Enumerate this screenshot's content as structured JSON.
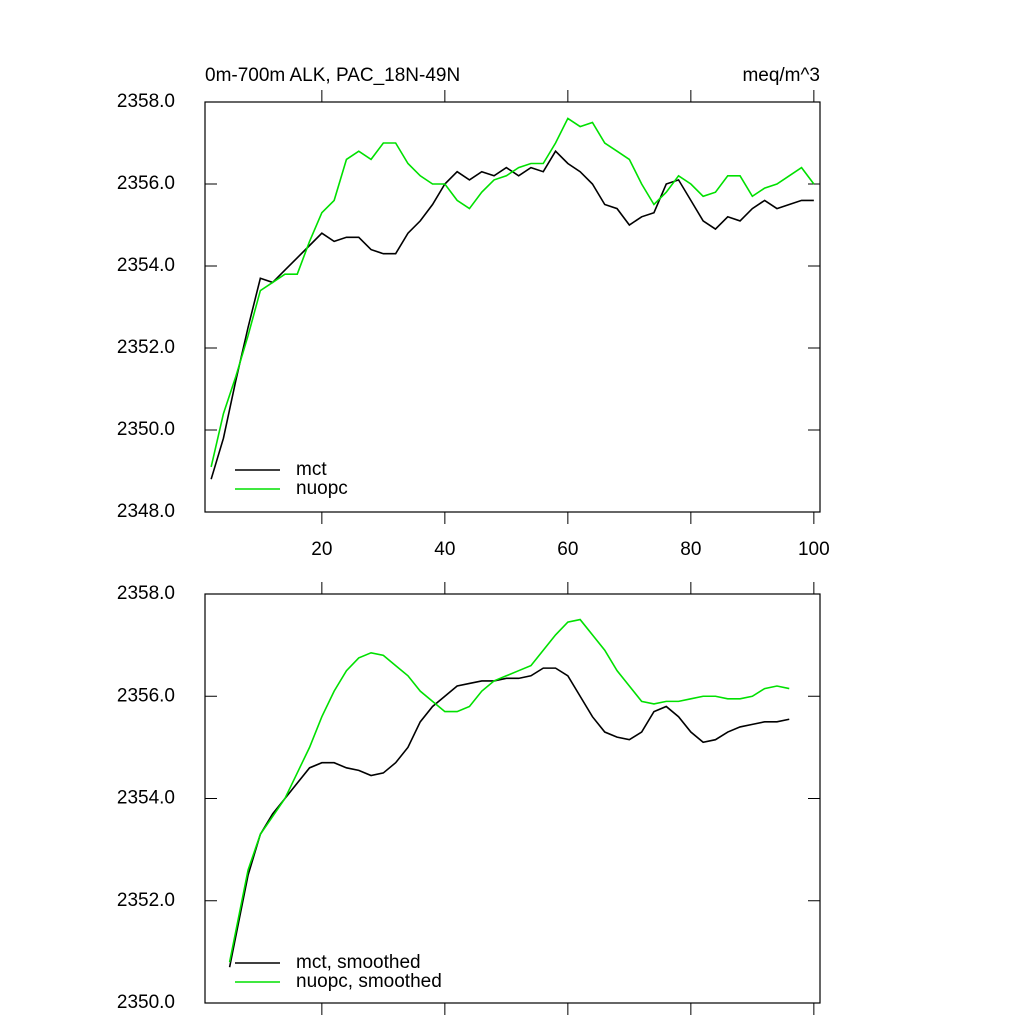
{
  "chart_data": [
    {
      "type": "line",
      "title": "0m-700m ALK, PAC_18N-49N",
      "units": "meq/m^3",
      "x": [
        2,
        4,
        6,
        8,
        10,
        12,
        14,
        16,
        18,
        20,
        22,
        24,
        26,
        28,
        30,
        32,
        34,
        36,
        38,
        40,
        42,
        44,
        46,
        48,
        50,
        52,
        54,
        56,
        58,
        60,
        62,
        64,
        66,
        68,
        70,
        72,
        74,
        76,
        78,
        80,
        82,
        84,
        86,
        88,
        90,
        92,
        94,
        96,
        98,
        100
      ],
      "series": [
        {
          "name": "mct",
          "color": "#000000",
          "values": [
            2348.8,
            2349.8,
            2351.2,
            2352.5,
            2353.7,
            2353.6,
            2353.9,
            2354.2,
            2354.5,
            2354.8,
            2354.6,
            2354.7,
            2354.7,
            2354.4,
            2354.3,
            2354.3,
            2354.8,
            2355.1,
            2355.5,
            2356.0,
            2356.3,
            2356.1,
            2356.3,
            2356.2,
            2356.4,
            2356.2,
            2356.4,
            2356.3,
            2356.8,
            2356.5,
            2356.3,
            2356.0,
            2355.5,
            2355.4,
            2355.0,
            2355.2,
            2355.3,
            2356.0,
            2356.1,
            2355.6,
            2355.1,
            2354.9,
            2355.2,
            2355.1,
            2355.4,
            2355.6,
            2355.4,
            2355.5,
            2355.6,
            2355.6
          ]
        },
        {
          "name": "nuopc",
          "color": "#00e000",
          "values": [
            2349.1,
            2350.4,
            2351.3,
            2352.3,
            2353.4,
            2353.6,
            2353.8,
            2353.8,
            2354.6,
            2355.3,
            2355.6,
            2356.6,
            2356.8,
            2356.6,
            2357.0,
            2357.0,
            2356.5,
            2356.2,
            2356.0,
            2356.0,
            2355.6,
            2355.4,
            2355.8,
            2356.1,
            2356.2,
            2356.4,
            2356.5,
            2356.5,
            2357.0,
            2357.6,
            2357.4,
            2357.5,
            2357.0,
            2356.8,
            2356.6,
            2356.0,
            2355.5,
            2355.8,
            2356.2,
            2356.0,
            2355.7,
            2355.8,
            2356.2,
            2356.2,
            2355.7,
            2355.9,
            2356.0,
            2356.2,
            2356.4,
            2356.0
          ]
        }
      ],
      "xlim": [
        1,
        101
      ],
      "xticks": [
        20,
        40,
        60,
        80,
        100
      ],
      "show_xtick_labels": true,
      "ylim": [
        2348,
        2358
      ],
      "yticks": [
        {
          "value": 2348,
          "label": "2348.0"
        },
        {
          "value": 2350,
          "label": "2350.0"
        },
        {
          "value": 2352,
          "label": "2352.0"
        },
        {
          "value": 2354,
          "label": "2354.0"
        },
        {
          "value": 2356,
          "label": "2356.0"
        },
        {
          "value": 2358,
          "label": "2358.0"
        }
      ]
    },
    {
      "type": "line",
      "x": [
        5,
        8,
        10,
        12,
        14,
        16,
        18,
        20,
        22,
        24,
        26,
        28,
        30,
        32,
        34,
        36,
        38,
        40,
        42,
        44,
        46,
        48,
        50,
        52,
        54,
        56,
        58,
        60,
        62,
        64,
        66,
        68,
        70,
        72,
        74,
        76,
        78,
        80,
        82,
        84,
        86,
        88,
        90,
        92,
        94,
        96
      ],
      "series": [
        {
          "name": "mct, smoothed",
          "color": "#000000",
          "values": [
            2350.7,
            2352.5,
            2353.3,
            2353.7,
            2354.0,
            2354.3,
            2354.6,
            2354.7,
            2354.7,
            2354.6,
            2354.55,
            2354.45,
            2354.5,
            2354.7,
            2355.0,
            2355.5,
            2355.8,
            2356.0,
            2356.2,
            2356.25,
            2356.3,
            2356.3,
            2356.35,
            2356.35,
            2356.4,
            2356.55,
            2356.55,
            2356.4,
            2356.0,
            2355.6,
            2355.3,
            2355.2,
            2355.15,
            2355.3,
            2355.7,
            2355.8,
            2355.6,
            2355.3,
            2355.1,
            2355.15,
            2355.3,
            2355.4,
            2355.45,
            2355.5,
            2355.5,
            2355.55
          ]
        },
        {
          "name": "nuopc, smoothed",
          "color": "#00e000",
          "values": [
            2350.8,
            2352.6,
            2353.3,
            2353.65,
            2354.0,
            2354.5,
            2355.0,
            2355.6,
            2356.1,
            2356.5,
            2356.75,
            2356.85,
            2356.8,
            2356.6,
            2356.4,
            2356.1,
            2355.9,
            2355.7,
            2355.7,
            2355.8,
            2356.1,
            2356.3,
            2356.4,
            2356.5,
            2356.6,
            2356.9,
            2357.2,
            2357.45,
            2357.5,
            2357.2,
            2356.9,
            2356.5,
            2356.2,
            2355.9,
            2355.85,
            2355.9,
            2355.9,
            2355.95,
            2356.0,
            2356.0,
            2355.95,
            2355.95,
            2356.0,
            2356.15,
            2356.2,
            2356.15
          ]
        }
      ],
      "xlim": [
        1,
        101
      ],
      "xticks": [
        20,
        40,
        60,
        80,
        100
      ],
      "show_xtick_labels": false,
      "ylim": [
        2350,
        2358
      ],
      "yticks": [
        {
          "value": 2350,
          "label": "2350.0"
        },
        {
          "value": 2352,
          "label": "2352.0"
        },
        {
          "value": 2354,
          "label": "2354.0"
        },
        {
          "value": 2356,
          "label": "2356.0"
        },
        {
          "value": 2358,
          "label": "2358.0"
        }
      ]
    }
  ]
}
